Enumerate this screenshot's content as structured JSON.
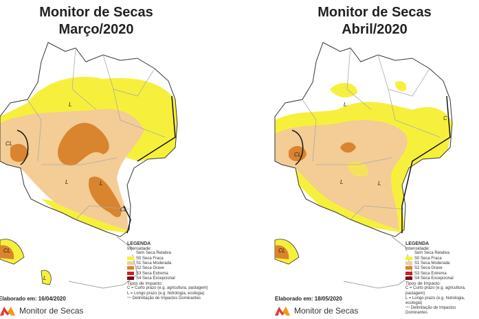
{
  "panels": [
    {
      "title_line1": "Monitor de Secas",
      "title_line2": "Março/2020",
      "elaborado": "Elaborado em: 16/04/2020"
    },
    {
      "title_line1": "Monitor de Secas",
      "title_line2": "Abril/2020",
      "elaborado": "Elaborado em: 18/05/2020"
    }
  ],
  "legend": {
    "title": "LEGENDA",
    "intensity_label": "Intensidade:",
    "items": [
      {
        "label": "Sem Seca Relativa",
        "color": "#ffffff"
      },
      {
        "label": "S0 Seca Fraca",
        "color": "#f6f03c"
      },
      {
        "label": "S1 Seca Moderada",
        "color": "#f3cc96"
      },
      {
        "label": "S2 Seca Grave",
        "color": "#d9842e"
      },
      {
        "label": "S3 Seca Extrema",
        "color": "#d41e1e"
      },
      {
        "label": "S4 Seca Excepcional",
        "color": "#7a0f0f"
      }
    ],
    "impact_title": "Tipos de Impacto:",
    "impact_c": "C = Curto prazo (e.g. agricultura, pastagem)",
    "impact_l": "L = Longo prazo (e.g. hidrologia, ecologia)",
    "delineation": "Delimitação de Impactos Dominantes"
  },
  "map_labels": {
    "L": "L",
    "C": "C",
    "CL": "CL"
  },
  "logo": {
    "text": "Monitor de Secas",
    "colors": [
      "#e8372c",
      "#f39a1e"
    ]
  }
}
